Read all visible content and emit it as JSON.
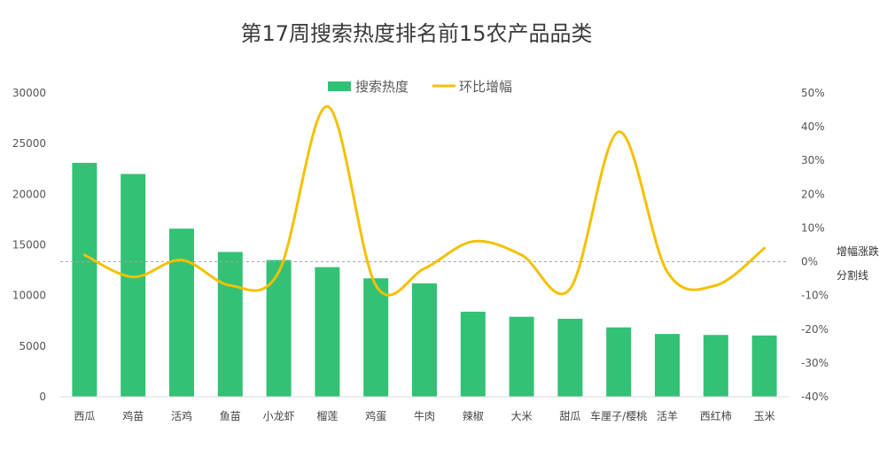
{
  "chart_data": {
    "type": "bar",
    "title": "第17周搜索热度排名前15农产品品类",
    "categories": [
      "西瓜",
      "鸡苗",
      "活鸡",
      "鱼苗",
      "小龙虾",
      "榴莲",
      "鸡蛋",
      "牛肉",
      "辣椒",
      "大米",
      "甜瓜",
      "车厘子/樱桃",
      "活羊",
      "西红柿",
      "玉米"
    ],
    "series": [
      {
        "name": "搜索热度",
        "kind": "bar",
        "axis": "left",
        "color": "#33c175",
        "values": [
          23100,
          22000,
          16600,
          14300,
          13500,
          12800,
          11700,
          11200,
          8400,
          7900,
          7700,
          6850,
          6200,
          6100,
          6050
        ]
      },
      {
        "name": "环比增幅",
        "kind": "line",
        "axis": "right",
        "color": "#f5c000",
        "values": [
          0.02,
          -0.045,
          0.005,
          -0.07,
          -0.03,
          0.46,
          -0.07,
          -0.02,
          0.06,
          0.02,
          -0.08,
          0.385,
          -0.03,
          -0.07,
          0.04
        ]
      }
    ],
    "left_axis": {
      "ylim": [
        0,
        30000
      ],
      "ticks": [
        "30000",
        "25000",
        "20000",
        "15000",
        "10000",
        "5000",
        "0"
      ]
    },
    "right_axis": {
      "ylim": [
        -0.4,
        0.5
      ],
      "ticks": [
        "50%",
        "40%",
        "30%",
        "20%",
        "10%",
        "0%",
        "-10%",
        "-20%",
        "-30%",
        "-40%"
      ]
    },
    "legend_position": "top-center",
    "annotation": [
      "增幅涨跌",
      "分割线"
    ]
  }
}
